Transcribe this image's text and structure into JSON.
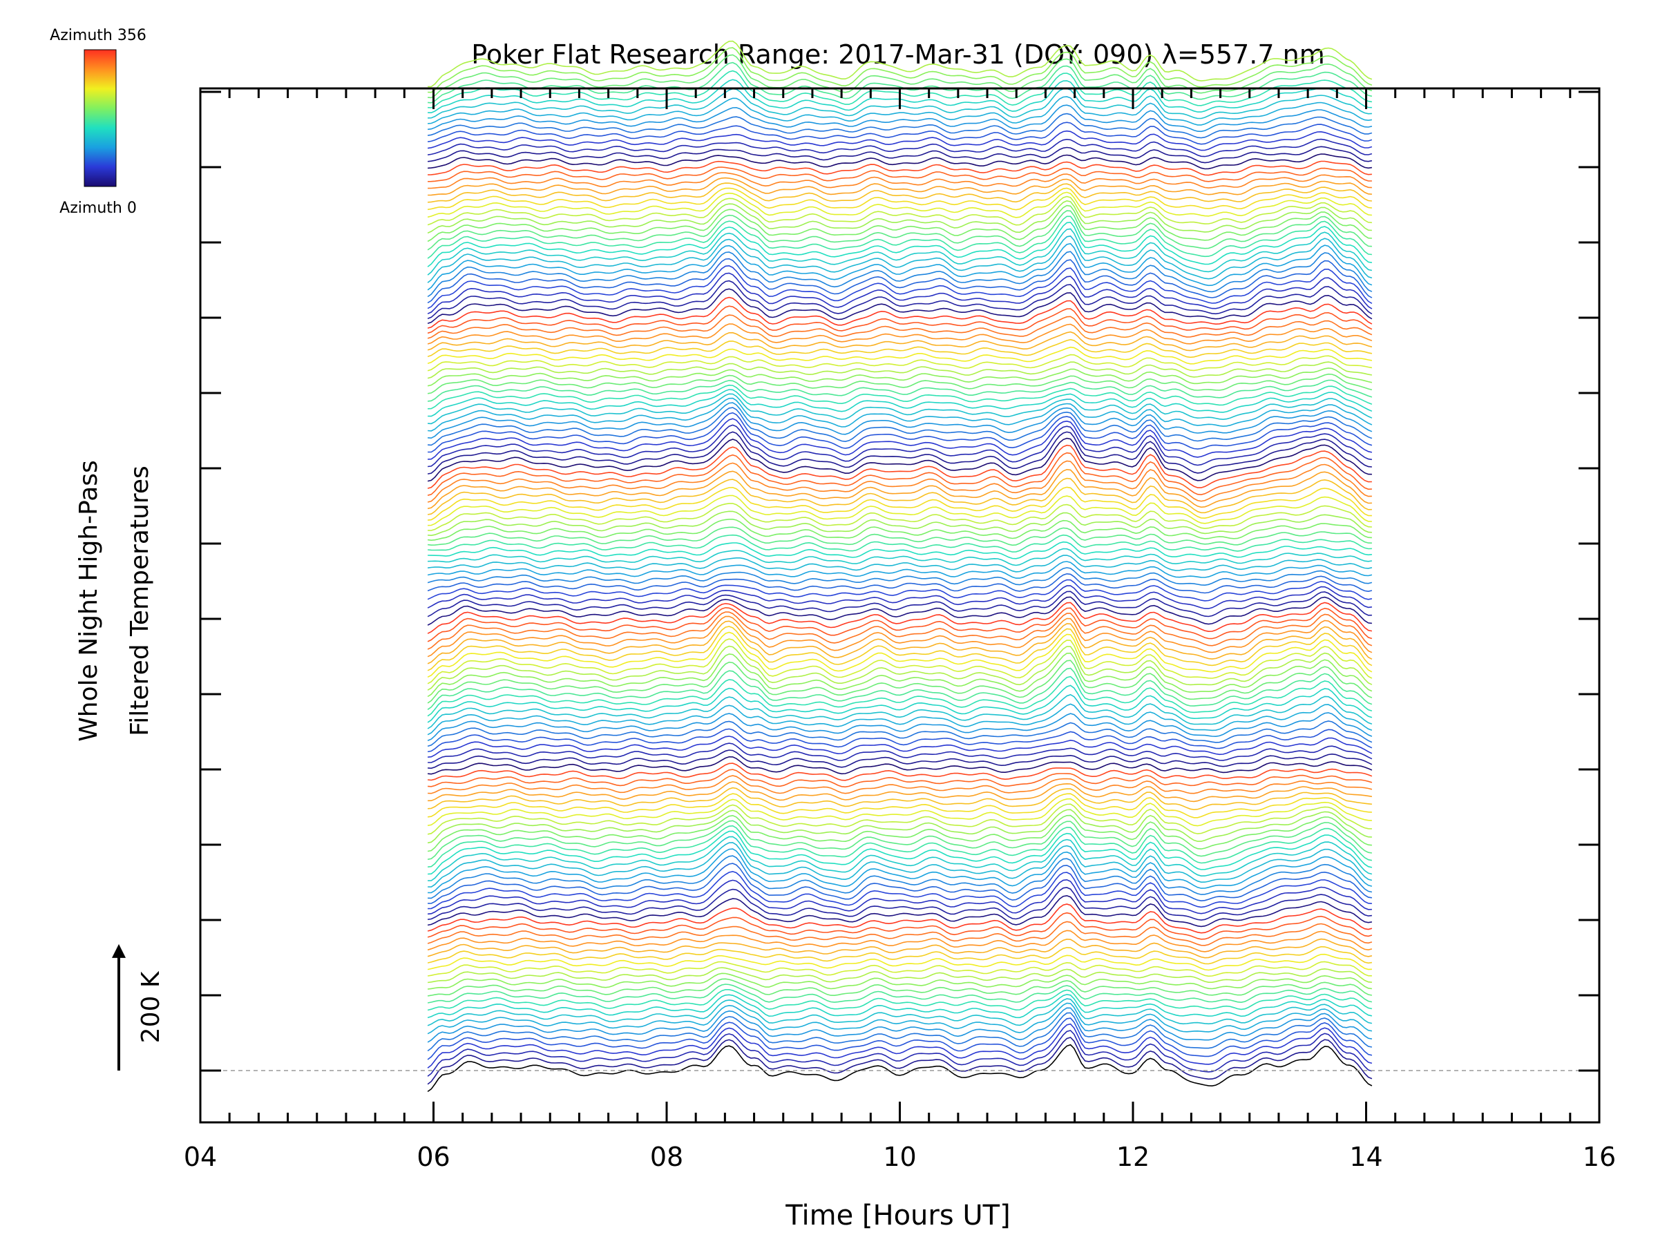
{
  "chart_data": {
    "type": "line",
    "title": "Poker Flat Research Range: 2017-Mar-31 (DOY: 090) λ=557.7 nm",
    "xlabel": "Time [Hours UT]",
    "ylabel": [
      "Whole Night High-Pass",
      "Filtered Temperatures"
    ],
    "xlim": [
      4,
      16
    ],
    "x_ticks": [
      "04",
      "06",
      "08",
      "10",
      "12",
      "14",
      "16"
    ],
    "x_tick_values": [
      4,
      6,
      8,
      10,
      12,
      14,
      16
    ],
    "y_unit_scale": {
      "label": "200 K",
      "value": 200
    },
    "colorbar": {
      "top_label": "Azimuth 356",
      "bottom_label": "Azimuth 0",
      "range": [
        0,
        356
      ],
      "colors": [
        "#1a0a70",
        "#2a3ad8",
        "#1aa0e0",
        "#20e0c0",
        "#80f060",
        "#f0f020",
        "#ff9020",
        "#ff3020"
      ]
    },
    "series_meta": {
      "count": 150,
      "offset_per_series_K": 44.7,
      "azimuth_step_deg": 16,
      "x_start": 5.95,
      "x_end": 14.05,
      "lowest_series_baseline_K": 0
    },
    "envelope": {
      "x": [
        5.95,
        6.1,
        6.3,
        6.6,
        7.0,
        7.5,
        7.9,
        8.3,
        8.55,
        8.75,
        8.9,
        9.2,
        9.5,
        9.8,
        10.0,
        10.3,
        10.5,
        10.8,
        11.0,
        11.2,
        11.45,
        11.6,
        11.8,
        12.0,
        12.15,
        12.3,
        12.6,
        12.9,
        13.2,
        13.5,
        13.65,
        13.85,
        14.05
      ],
      "y": [
        -120,
        -30,
        40,
        30,
        10,
        -25,
        -5,
        15,
        170,
        30,
        -40,
        -10,
        -60,
        30,
        -10,
        20,
        -30,
        -10,
        -60,
        0,
        170,
        10,
        30,
        -10,
        90,
        -20,
        -90,
        -40,
        40,
        80,
        140,
        40,
        -80
      ]
    },
    "grid": false,
    "legend": "none"
  }
}
